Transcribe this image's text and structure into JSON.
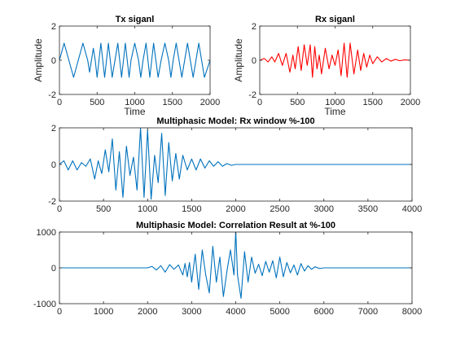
{
  "figure": {
    "background": "#ffffff",
    "axis_color": "#262626"
  },
  "chart_data": [
    {
      "id": "tx",
      "type": "line",
      "title": "Tx siganl",
      "xlabel": "Time",
      "ylabel": "Amplitude",
      "xlim": [
        0,
        2000
      ],
      "ylim": [
        -2,
        2
      ],
      "xticks": [
        0,
        500,
        1000,
        1500,
        2000
      ],
      "yticks": [
        -2,
        0,
        2
      ],
      "xtick_labels": [
        "0",
        "500",
        "1000",
        "1500",
        "2000"
      ],
      "ytick_labels": [
        "-2",
        "0",
        "2"
      ],
      "grid": false,
      "series": [
        {
          "color": "#0072BD",
          "x": [
            0,
            62,
            125,
            188,
            250,
            312,
            375,
            400,
            425,
            450,
            475,
            500,
            525,
            550,
            575,
            600,
            625,
            650,
            700,
            775,
            800,
            825,
            850,
            875,
            900,
            925,
            950,
            1000,
            1050,
            1080,
            1110,
            1150,
            1200,
            1250,
            1280,
            1310,
            1350,
            1400,
            1450,
            1480,
            1510,
            1550,
            1625,
            1700,
            1775,
            1850,
            1925,
            2000
          ],
          "y": [
            0,
            1,
            0,
            -1,
            0,
            1,
            0,
            -0.7,
            0,
            0.7,
            0,
            -1,
            0,
            1,
            0,
            -1,
            0,
            1,
            -1,
            1,
            0,
            -1,
            0,
            1,
            0,
            -1,
            0,
            1,
            0,
            -1,
            0,
            1,
            -1,
            1,
            0,
            -1,
            0,
            1,
            0,
            -1,
            0,
            1,
            -1,
            1,
            -1,
            1,
            -1,
            0
          ]
        }
      ]
    },
    {
      "id": "rx",
      "type": "line",
      "title": "Rx siganl",
      "xlabel": "Time",
      "ylabel": "Amplitude",
      "xlim": [
        0,
        2000
      ],
      "ylim": [
        -2,
        2
      ],
      "xticks": [
        0,
        500,
        1000,
        1500,
        2000
      ],
      "yticks": [
        -2,
        0,
        2
      ],
      "xtick_labels": [
        "0",
        "500",
        "1000",
        "1500",
        "2000"
      ],
      "ytick_labels": [
        "-2",
        "0",
        "2"
      ],
      "grid": false,
      "series": [
        {
          "color": "#FF0000",
          "x": [
            0,
            60,
            110,
            160,
            200,
            250,
            300,
            350,
            400,
            440,
            470,
            510,
            550,
            590,
            630,
            670,
            700,
            730,
            760,
            790,
            820,
            870,
            920,
            960,
            1000,
            1040,
            1080,
            1120,
            1160,
            1200,
            1250,
            1300,
            1340,
            1380,
            1420,
            1460,
            1500,
            1560,
            1620,
            1680,
            1740,
            1800,
            1860,
            1920,
            2000
          ],
          "y": [
            0,
            0.1,
            -0.1,
            0.2,
            -0.1,
            0.4,
            -0.3,
            0.4,
            -0.7,
            0.3,
            -0.5,
            0.8,
            -0.6,
            0.9,
            -0.3,
            0.9,
            -1,
            0.8,
            -0.5,
            0.3,
            -0.8,
            0.7,
            -0.5,
            0.3,
            -0.3,
            0.6,
            -0.9,
            1,
            -1,
            1,
            -0.8,
            0.6,
            -0.6,
            0.4,
            -0.4,
            0.3,
            -0.2,
            0.2,
            -0.1,
            0.1,
            -0.05,
            0.05,
            -0.03,
            0.02,
            0
          ]
        }
      ]
    },
    {
      "id": "rx-window",
      "type": "line",
      "title": "Multiphasic Model: Rx window %-100",
      "xlabel": "",
      "ylabel": "",
      "xlim": [
        0,
        4000
      ],
      "ylim": [
        -2,
        2
      ],
      "xticks": [
        0,
        500,
        1000,
        1500,
        2000,
        2500,
        3000,
        3500,
        4000
      ],
      "yticks": [
        -2,
        0,
        2
      ],
      "xtick_labels": [
        "0",
        "500",
        "1000",
        "1500",
        "2000",
        "2500",
        "3000",
        "3500",
        "4000"
      ],
      "ytick_labels": [
        "-2",
        "0",
        "2"
      ],
      "grid": false,
      "series": [
        {
          "color": "#0072BD",
          "x": [
            0,
            50,
            100,
            150,
            200,
            250,
            300,
            350,
            400,
            440,
            480,
            520,
            560,
            600,
            640,
            680,
            720,
            760,
            800,
            840,
            880,
            920,
            960,
            1000,
            1040,
            1080,
            1120,
            1160,
            1200,
            1240,
            1280,
            1320,
            1360,
            1400,
            1450,
            1500,
            1550,
            1600,
            1650,
            1700,
            1750,
            1800,
            1850,
            1900,
            1950,
            2000,
            2050,
            4000
          ],
          "y": [
            0,
            0.2,
            -0.3,
            0.2,
            -0.3,
            0.1,
            -0.1,
            0.3,
            -0.8,
            0.2,
            -0.5,
            0.8,
            -0.4,
            1.4,
            -1.4,
            0.7,
            -1.8,
            1,
            -0.6,
            0.4,
            -1.4,
            2,
            -1.8,
            1.9,
            -1.9,
            0.5,
            -1,
            1.7,
            -1.7,
            1.2,
            -0.9,
            0.6,
            -0.8,
            0.5,
            -0.3,
            0.3,
            -0.3,
            0.3,
            -0.2,
            0.2,
            -0.1,
            0.15,
            -0.1,
            0.05,
            -0.05,
            0,
            0,
            0
          ]
        }
      ]
    },
    {
      "id": "correlation",
      "type": "line",
      "title": "Multiphasic Model: Correlation Result at %-100",
      "xlabel": "",
      "ylabel": "",
      "xlim": [
        0,
        8000
      ],
      "ylim": [
        -1000,
        1000
      ],
      "xticks": [
        0,
        1000,
        2000,
        3000,
        4000,
        5000,
        6000,
        7000,
        8000
      ],
      "yticks": [
        -1000,
        0,
        1000
      ],
      "xtick_labels": [
        "0",
        "1000",
        "2000",
        "3000",
        "4000",
        "5000",
        "6000",
        "7000",
        "8000"
      ],
      "ytick_labels": [
        "-1000",
        "0",
        "1000"
      ],
      "grid": false,
      "series": [
        {
          "color": "#0072BD",
          "x": [
            0,
            2000,
            2100,
            2200,
            2300,
            2400,
            2500,
            2600,
            2700,
            2800,
            2850,
            2900,
            2950,
            3000,
            3080,
            3160,
            3240,
            3320,
            3400,
            3480,
            3560,
            3640,
            3720,
            3800,
            3880,
            3960,
            4000,
            4040,
            4120,
            4200,
            4280,
            4360,
            4440,
            4520,
            4600,
            4680,
            4760,
            4840,
            4920,
            5000,
            5080,
            5160,
            5240,
            5320,
            5400,
            5480,
            5560,
            5640,
            5720,
            5800,
            5900,
            6000,
            8000
          ],
          "y": [
            0,
            0,
            40,
            -60,
            60,
            -120,
            90,
            -40,
            80,
            -200,
            120,
            -250,
            150,
            -400,
            380,
            -600,
            500,
            -200,
            -700,
            600,
            -400,
            300,
            -800,
            -100,
            500,
            -200,
            1050,
            -200,
            -850,
            450,
            -400,
            300,
            -150,
            100,
            -220,
            180,
            -120,
            200,
            -280,
            300,
            -250,
            150,
            -140,
            80,
            -200,
            120,
            -90,
            60,
            -40,
            30,
            -20,
            0,
            0
          ]
        }
      ]
    }
  ]
}
